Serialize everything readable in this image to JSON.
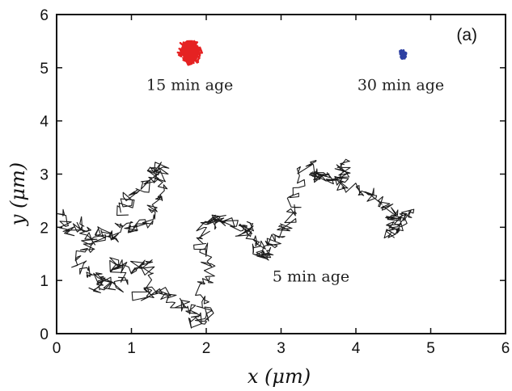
{
  "chart_data": {
    "type": "line",
    "title": "",
    "panel_label": "(a)",
    "xlabel": "x (μm)",
    "ylabel": "y (μm)",
    "xlim": [
      0,
      6
    ],
    "ylim": [
      0,
      6
    ],
    "xticks": [
      "0",
      "1",
      "2",
      "3",
      "4",
      "5",
      "6"
    ],
    "yticks": [
      "0",
      "1",
      "2",
      "3",
      "4",
      "5",
      "6"
    ],
    "grid": false,
    "legend": "none",
    "annotations": [
      {
        "text": "15 min age",
        "x": 1.78,
        "y": 4.58
      },
      {
        "text": "30 min age",
        "x": 4.6,
        "y": 4.58
      },
      {
        "text": "5 min age",
        "x": 3.4,
        "y": 0.98
      }
    ],
    "series": [
      {
        "color": "#1a1a1a",
        "waypoints": [
          [
            0.05,
            2.25
          ],
          [
            0.15,
            1.9
          ],
          [
            0.35,
            2.1
          ],
          [
            0.45,
            1.75
          ],
          [
            0.3,
            1.3
          ],
          [
            0.45,
            1.1
          ],
          [
            0.7,
            1.0
          ],
          [
            0.5,
            0.85
          ],
          [
            0.9,
            0.9
          ],
          [
            0.75,
            1.35
          ],
          [
            1.0,
            1.2
          ],
          [
            1.25,
            1.35
          ],
          [
            1.1,
            0.7
          ],
          [
            1.4,
            0.85
          ],
          [
            1.6,
            0.6
          ],
          [
            1.8,
            0.45
          ],
          [
            1.85,
            0.2
          ],
          [
            2.0,
            0.35
          ],
          [
            1.95,
            0.8
          ],
          [
            2.05,
            1.2
          ],
          [
            1.9,
            1.7
          ],
          [
            2.0,
            2.05
          ],
          [
            2.1,
            2.15
          ],
          [
            2.3,
            2.1
          ],
          [
            2.5,
            1.9
          ],
          [
            2.55,
            2.05
          ],
          [
            2.7,
            1.7
          ],
          [
            2.75,
            1.45
          ],
          [
            2.85,
            1.6
          ],
          [
            2.95,
            1.85
          ],
          [
            3.1,
            2.1
          ],
          [
            3.2,
            2.55
          ],
          [
            3.35,
            3.2
          ],
          [
            3.45,
            2.9
          ],
          [
            3.55,
            3.0
          ],
          [
            3.75,
            2.85
          ],
          [
            3.85,
            3.25
          ],
          [
            3.8,
            2.8
          ],
          [
            4.05,
            2.7
          ],
          [
            4.25,
            2.55
          ],
          [
            4.45,
            2.3
          ],
          [
            4.55,
            2.1
          ],
          [
            4.45,
            1.85
          ],
          [
            4.6,
            2.15
          ],
          [
            4.7,
            2.3
          ]
        ]
      },
      {
        "color": "#1a1a1a",
        "waypoints": [
          [
            0.9,
            2.3
          ],
          [
            1.0,
            2.6
          ],
          [
            1.2,
            2.8
          ],
          [
            1.3,
            3.05
          ],
          [
            1.4,
            3.15
          ],
          [
            1.35,
            2.6
          ],
          [
            1.25,
            2.2
          ],
          [
            1.05,
            1.95
          ],
          [
            0.85,
            2.05
          ],
          [
            0.75,
            1.8
          ],
          [
            0.6,
            1.95
          ],
          [
            0.5,
            1.6
          ]
        ]
      },
      {
        "color": "#e52222",
        "cluster": {
          "cx": 1.78,
          "cy": 5.3,
          "rx": 0.2,
          "ry": 0.3,
          "n": 420
        }
      },
      {
        "color": "#2c3fa2",
        "cluster": {
          "cx": 4.62,
          "cy": 5.25,
          "rx": 0.06,
          "ry": 0.13,
          "n": 140
        }
      }
    ]
  }
}
